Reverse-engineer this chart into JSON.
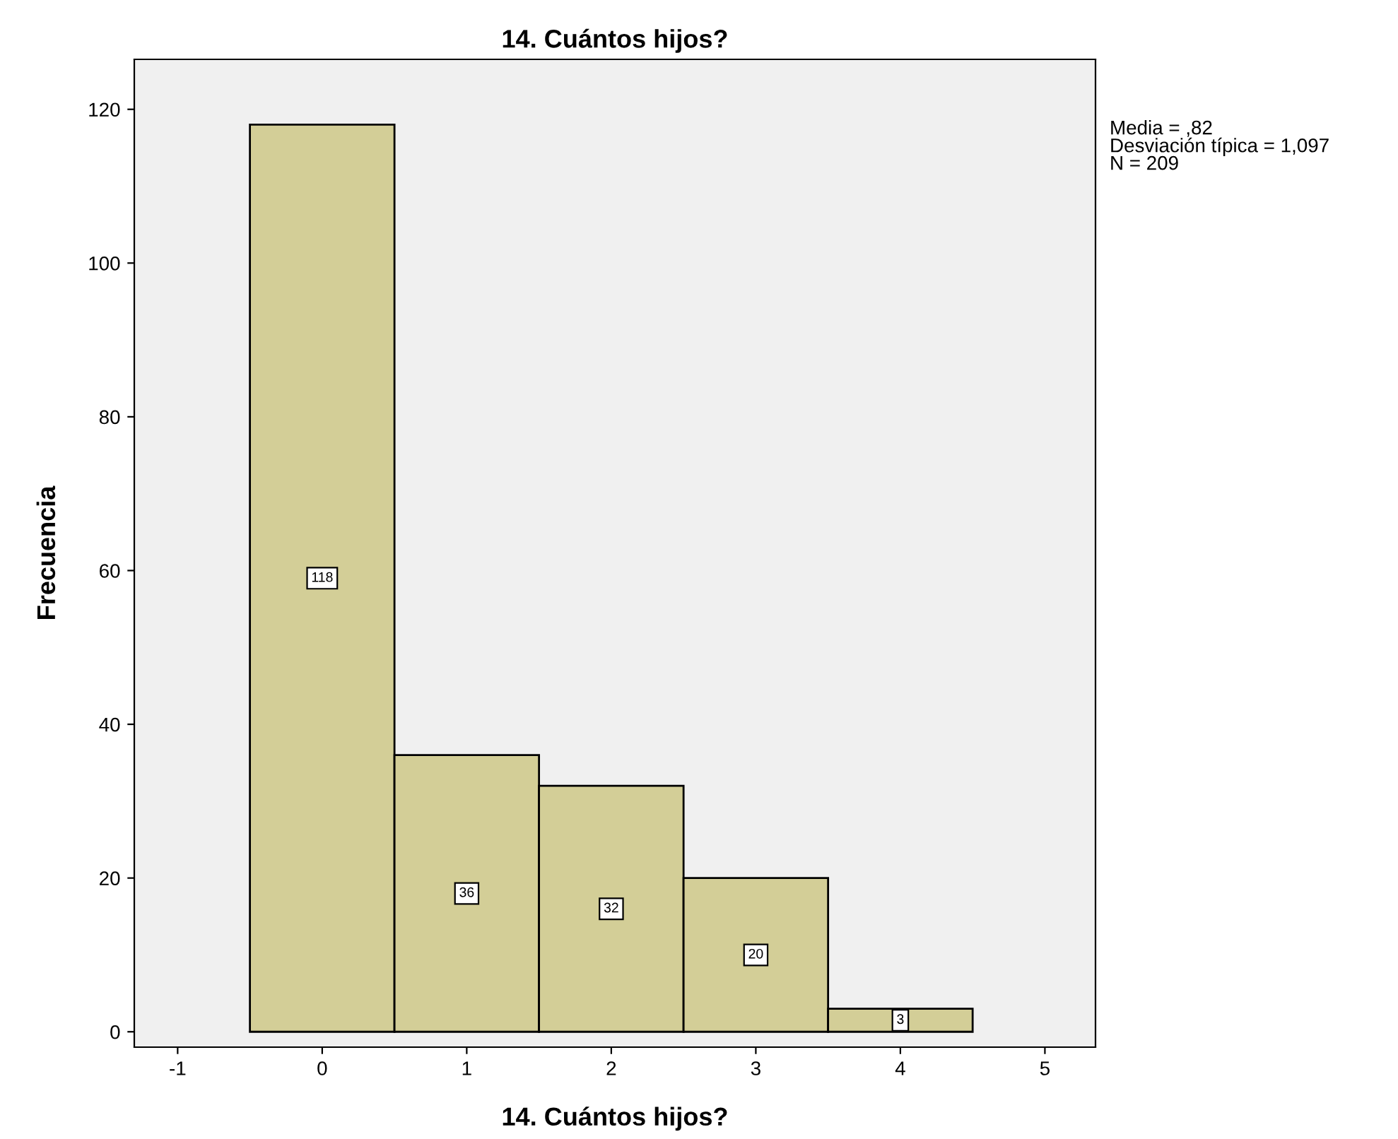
{
  "chart_data": {
    "type": "histogram",
    "title": "14. Cuántos hijos?",
    "xlabel": "14. Cuántos hijos?",
    "ylabel": "Frecuencia",
    "bins": [
      -0.5,
      0.5,
      1.5,
      2.5,
      3.5,
      4.5
    ],
    "values": [
      118,
      36,
      32,
      20,
      3
    ],
    "color": "#d3ce97",
    "xlim": [
      -1.3,
      5.35
    ],
    "xticks": [
      -1,
      0,
      1,
      2,
      3,
      4,
      5
    ],
    "ylim": [
      -2,
      126.5
    ],
    "yticks": [
      0,
      20,
      40,
      60,
      80,
      100,
      120
    ],
    "data_labels": true,
    "grid": false,
    "legend": false,
    "annotations": [
      "Media = ,82\nDesviación típica = 1,097\nN = 209"
    ]
  }
}
